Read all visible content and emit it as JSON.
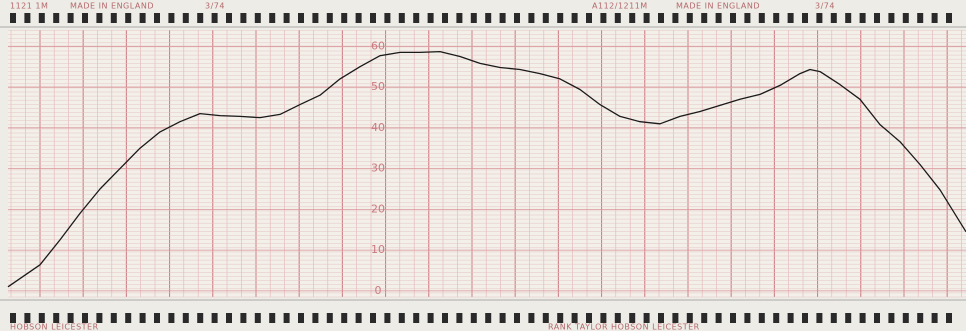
{
  "chart_data": {
    "type": "line",
    "annotations": [
      "1121 1M",
      "MADE IN ENGLAND",
      "3/74",
      "A112/1211M",
      "MADE IN ENGLAND",
      "3/74",
      "HOBSON LEICESTER",
      "RANK TAYLOR HOBSON LEICESTER"
    ],
    "x": [
      0,
      32,
      52,
      72,
      92,
      112,
      132,
      152,
      172,
      192,
      212,
      232,
      252,
      272,
      292,
      312,
      332,
      352,
      372,
      392,
      412,
      432,
      452,
      472,
      492,
      512,
      532,
      552,
      572,
      592,
      612,
      632,
      652,
      672,
      692,
      712,
      732,
      752,
      772,
      792,
      802,
      812,
      832,
      852,
      872,
      892,
      912,
      932,
      958
    ],
    "series": [
      {
        "color": "#1a1a1a",
        "values": [
          1,
          6.4,
          12.5,
          19,
          25,
          30,
          35,
          39,
          41.5,
          43.5,
          43,
          42.8,
          42.5,
          43.3,
          45.7,
          48,
          52,
          55,
          57.7,
          58.5,
          58.5,
          58.7,
          57.5,
          55.8,
          54.8,
          54.3,
          53.3,
          52,
          49.4,
          45.7,
          42.8,
          41.5,
          41,
          42.8,
          44,
          45.5,
          47,
          48.2,
          50.4,
          53.3,
          54.3,
          53.8,
          50.6,
          47,
          40.8,
          36.6,
          31,
          24.8,
          14.5
        ]
      }
    ],
    "xlim": [
      0,
      958
    ],
    "ylim": [
      -1.5,
      64
    ],
    "yticks": [
      0,
      10,
      20,
      30,
      40,
      50,
      60
    ],
    "grid": true
  }
}
